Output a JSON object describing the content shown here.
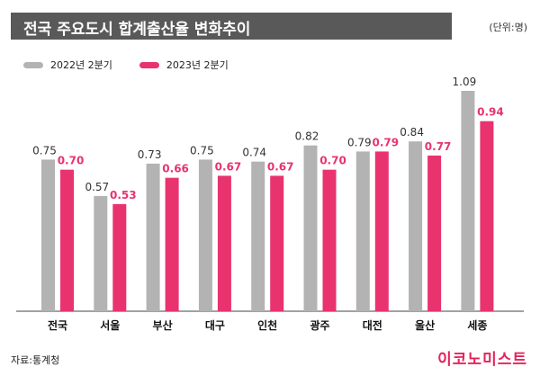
{
  "header": {
    "title": "전국 주요도시 합계출산율 변화추이",
    "unit": "(단위:명)"
  },
  "legend": {
    "items": [
      {
        "label": "2022년 2분기"
      },
      {
        "label": "2023년 2분기"
      }
    ]
  },
  "colors": {
    "series_2022": "#b3b3b3",
    "series_2023": "#e8336f",
    "title_bg": "#595959",
    "brand": "#e4245b"
  },
  "footer": {
    "source": "자료:통계청",
    "brand": "이코노미스트"
  },
  "chart_data": {
    "type": "bar",
    "categories": [
      "전국",
      "서울",
      "부산",
      "대구",
      "인천",
      "광주",
      "대전",
      "울산",
      "세종"
    ],
    "series": [
      {
        "name": "2022년 2분기",
        "values": [
          0.75,
          0.57,
          0.73,
          0.75,
          0.74,
          0.82,
          0.79,
          0.84,
          1.09
        ]
      },
      {
        "name": "2023년 2분기",
        "values": [
          0.7,
          0.53,
          0.66,
          0.67,
          0.67,
          0.7,
          0.79,
          0.77,
          0.94
        ]
      }
    ],
    "value_labels": [
      [
        "0.75",
        "0.57",
        "0.73",
        "0.75",
        "0.74",
        "0.82",
        "0.79",
        "0.84",
        "1.09"
      ],
      [
        "0.70",
        "0.53",
        "0.66",
        "0.67",
        "0.67",
        "0.70",
        "0.79",
        "0.77",
        "0.94"
      ]
    ],
    "title": "전국 주요도시 합계출산율 변화추이",
    "xlabel": "",
    "ylabel": "",
    "ylim": [
      0,
      1.09
    ],
    "grid": false,
    "legend_position": "top-left"
  }
}
